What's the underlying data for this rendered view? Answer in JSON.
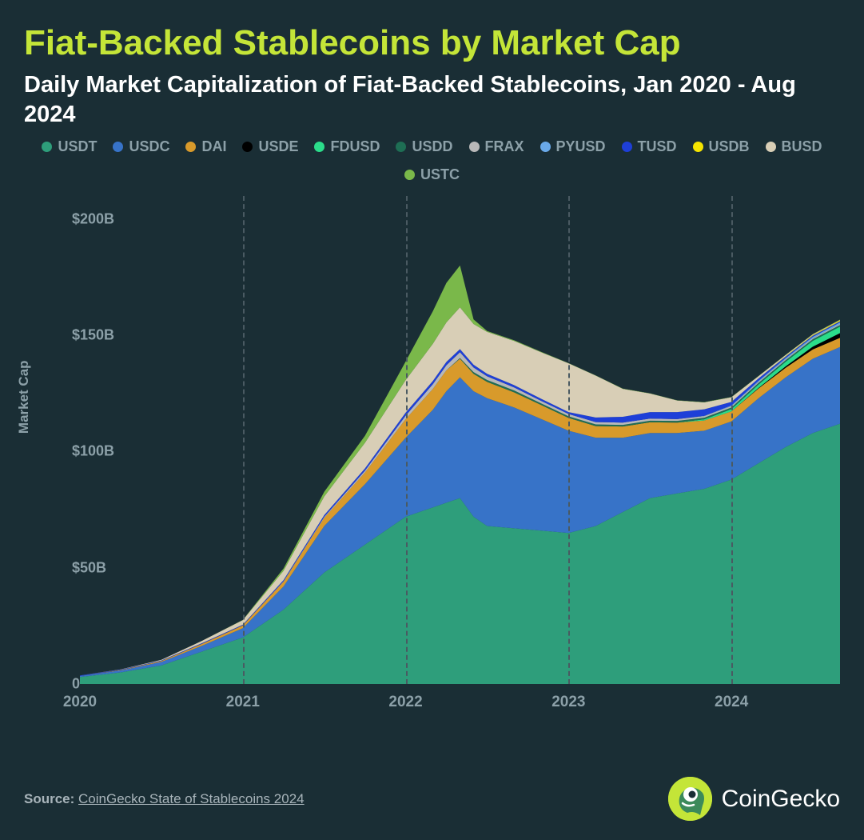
{
  "title": "Fiat-Backed Stablecoins by Market Cap",
  "subtitle": "Daily Market Capitalization of Fiat-Backed Stablecoins, Jan 2020 - Aug 2024",
  "legend": [
    {
      "label": "USDT",
      "color": "#2e9e7b"
    },
    {
      "label": "USDC",
      "color": "#3773c8"
    },
    {
      "label": "DAI",
      "color": "#d89a2b"
    },
    {
      "label": "USDE",
      "color": "#000000"
    },
    {
      "label": "FDUSD",
      "color": "#2bdc8a"
    },
    {
      "label": "USDD",
      "color": "#1e6e54"
    },
    {
      "label": "FRAX",
      "color": "#b8b8b8"
    },
    {
      "label": "PYUSD",
      "color": "#6aa9e8"
    },
    {
      "label": "TUSD",
      "color": "#1e3fd8"
    },
    {
      "label": "USDB",
      "color": "#f5e400"
    },
    {
      "label": "BUSD",
      "color": "#d8ceb6"
    },
    {
      "label": "USTC",
      "color": "#7ab84a"
    }
  ],
  "chart": {
    "type": "stacked-area",
    "background_color": "#1a2e35",
    "grid_color": "#4a5a62",
    "label_color": "#8ca0a8",
    "label_fontsize": 18,
    "title_fontsize": 44,
    "subtitle_fontsize": 29,
    "title_color": "#c4e538",
    "subtitle_color": "#ffffff",
    "ylabel": "Market Cap",
    "ylim": [
      0,
      210
    ],
    "yticks": [
      0,
      50,
      100,
      150,
      200
    ],
    "ytick_labels": [
      "0",
      "$50B",
      "$100B",
      "$150B",
      "$200B"
    ],
    "xlim": [
      0,
      56
    ],
    "xticks": [
      0,
      12,
      24,
      36,
      48
    ],
    "xtick_labels": [
      "2020",
      "2021",
      "2022",
      "2023",
      "2024"
    ],
    "gridlines_x": [
      12,
      24,
      36,
      48
    ],
    "series_order": [
      "USDT",
      "USDC",
      "DAI",
      "USDE",
      "FDUSD",
      "USDD",
      "FRAX",
      "PYUSD",
      "TUSD",
      "USDB",
      "BUSD",
      "USTC"
    ],
    "x_samples": [
      0,
      3,
      6,
      9,
      12,
      15,
      18,
      21,
      24,
      26,
      27,
      28,
      29,
      30,
      32,
      34,
      36,
      38,
      40,
      42,
      44,
      46,
      48,
      50,
      52,
      54,
      56
    ],
    "series": {
      "USDT": [
        3,
        5,
        8,
        14,
        20,
        32,
        48,
        60,
        72,
        76,
        78,
        80,
        72,
        68,
        67,
        66,
        65,
        68,
        74,
        80,
        82,
        84,
        88,
        95,
        102,
        108,
        112
      ],
      "USDC": [
        0.5,
        0.8,
        1.5,
        2.5,
        4,
        10,
        20,
        26,
        34,
        42,
        48,
        52,
        54,
        55,
        52,
        48,
        44,
        38,
        32,
        28,
        26,
        25,
        25,
        28,
        30,
        32,
        33
      ],
      "DAI": [
        0,
        0.2,
        0.4,
        0.8,
        1.2,
        2,
        3.5,
        5,
        8,
        9,
        9,
        8,
        7.5,
        7,
        6.5,
        6,
        5.5,
        5,
        4.8,
        4.6,
        4.5,
        4.4,
        4.3,
        4.2,
        4.1,
        4,
        4
      ],
      "USDE": [
        0,
        0,
        0,
        0,
        0,
        0,
        0,
        0,
        0,
        0,
        0,
        0,
        0,
        0,
        0,
        0,
        0,
        0,
        0,
        0,
        0,
        0,
        0,
        0.2,
        0.6,
        1.2,
        2
      ],
      "FDUSD": [
        0,
        0,
        0,
        0,
        0,
        0,
        0,
        0,
        0,
        0,
        0,
        0,
        0,
        0,
        0,
        0,
        0,
        0,
        0,
        0,
        0,
        0.5,
        1,
        1.5,
        2,
        2.5,
        2.8
      ],
      "USDD": [
        0,
        0,
        0,
        0,
        0,
        0,
        0,
        0,
        0,
        0,
        0,
        0.3,
        0.7,
        0.8,
        0.8,
        0.7,
        0.7,
        0.7,
        0.7,
        0.7,
        0.7,
        0.7,
        0.7,
        0.7,
        0.7,
        0.7,
        0.7
      ],
      "FRAX": [
        0,
        0,
        0,
        0,
        0,
        0.2,
        0.4,
        0.8,
        1.5,
        2,
        2.2,
        2.5,
        2,
        1.6,
        1.3,
        1.1,
        1,
        1,
        1,
        0.9,
        0.8,
        0.7,
        0.6,
        0.5,
        0.4,
        0.4,
        0.4
      ],
      "PYUSD": [
        0,
        0,
        0,
        0,
        0,
        0,
        0,
        0,
        0,
        0,
        0,
        0,
        0,
        0,
        0,
        0,
        0,
        0,
        0,
        0,
        0,
        0.1,
        0.3,
        0.4,
        0.5,
        0.6,
        0.7
      ],
      "TUSD": [
        0.2,
        0.2,
        0.2,
        0.3,
        0.3,
        0.5,
        0.8,
        1,
        1.3,
        1.4,
        1.4,
        1.3,
        1.2,
        1.1,
        1,
        0.9,
        0.8,
        2,
        2.5,
        2.8,
        3,
        2.8,
        1.5,
        1,
        0.6,
        0.5,
        0.5
      ],
      "USDB": [
        0,
        0,
        0,
        0,
        0,
        0,
        0,
        0,
        0,
        0,
        0,
        0,
        0,
        0,
        0,
        0,
        0,
        0,
        0,
        0,
        0,
        0,
        0,
        0,
        0.2,
        0.3,
        0.4
      ],
      "BUSD": [
        0,
        0.1,
        0.3,
        1,
        2,
        4,
        8,
        11,
        14,
        16,
        17,
        18,
        17.5,
        18,
        19,
        20,
        21,
        18,
        12,
        8,
        5,
        3,
        2,
        1,
        0.5,
        0.3,
        0.2
      ],
      "USTC": [
        0,
        0,
        0,
        0,
        0.1,
        1,
        2,
        3,
        8,
        14,
        17,
        18,
        2,
        0.4,
        0.3,
        0.2,
        0.1,
        0.1,
        0.1,
        0.1,
        0.1,
        0.1,
        0.1,
        0.1,
        0.1,
        0.1,
        0.1
      ]
    }
  },
  "source_prefix": "Source: ",
  "source_link": "CoinGecko State of Stablecoins 2024",
  "brand": "CoinGecko"
}
